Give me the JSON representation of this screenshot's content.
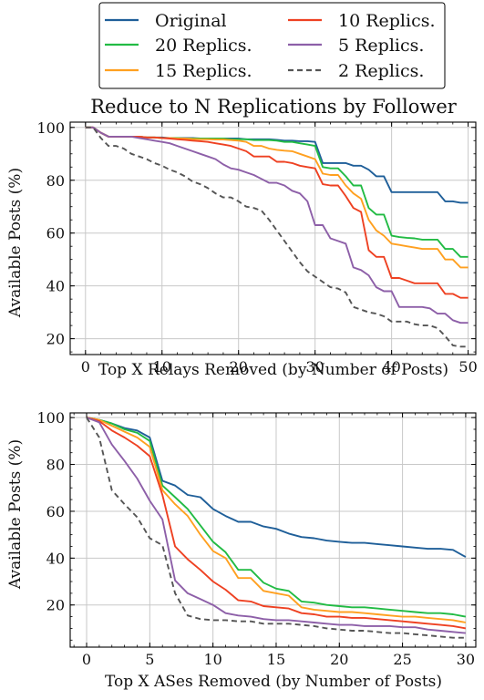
{
  "legend": {
    "items": [
      {
        "label": "Original",
        "color": "#1f5f99",
        "dash": false
      },
      {
        "label": "10 Replics.",
        "color": "#ee4122",
        "dash": false
      },
      {
        "label": "20 Replics.",
        "color": "#22bb44",
        "dash": false
      },
      {
        "label": "5 Replics.",
        "color": "#8d5fa8",
        "dash": false
      },
      {
        "label": "15 Replics.",
        "color": "#ffa020",
        "dash": false
      },
      {
        "label": "2 Replics.",
        "color": "#555555",
        "dash": true
      }
    ]
  },
  "chart_data": [
    {
      "type": "line",
      "title": "Reduce to N Replications by Follower",
      "xlabel": "Top X Relays Removed (by Number of Posts)",
      "ylabel": "Available Posts (%)",
      "xlim": [
        -2,
        51
      ],
      "ylim": [
        14,
        102
      ],
      "xticks": [
        0,
        10,
        20,
        30,
        40,
        50
      ],
      "yticks": [
        20,
        40,
        60,
        80,
        100
      ],
      "grid": true,
      "x": [
        0,
        1,
        2,
        3,
        4,
        5,
        6,
        7,
        8,
        9,
        10,
        11,
        12,
        13,
        14,
        15,
        16,
        17,
        18,
        19,
        20,
        21,
        22,
        23,
        24,
        25,
        26,
        27,
        28,
        29,
        30,
        31,
        32,
        33,
        34,
        35,
        36,
        37,
        38,
        39,
        40,
        41,
        42,
        43,
        44,
        45,
        46,
        47,
        48,
        49,
        50
      ],
      "series": [
        {
          "name": "Original",
          "color": "#1f5f99",
          "dash": false,
          "values": [
            100,
            100,
            98,
            96.5,
            96.5,
            96.5,
            96.5,
            96.5,
            96.2,
            96.2,
            96.2,
            96,
            96,
            96,
            96,
            95.8,
            95.8,
            95.8,
            95.8,
            95.8,
            95.8,
            95.5,
            95.5,
            95.5,
            95.5,
            95.3,
            95,
            95,
            94.8,
            94.8,
            94.5,
            86.5,
            86.5,
            86.5,
            86.5,
            85.5,
            85.5,
            84,
            81.5,
            81.5,
            75.5,
            75.5,
            75.5,
            75.5,
            75.5,
            75.5,
            75.5,
            72,
            72,
            71.5,
            71.5
          ]
        },
        {
          "name": "20 Replics.",
          "color": "#22bb44",
          "dash": false,
          "values": [
            100,
            100,
            98,
            96.5,
            96.5,
            96.5,
            96.5,
            96.5,
            96.2,
            96.2,
            96,
            96,
            96,
            95.8,
            95.8,
            95.8,
            95.8,
            95.8,
            95.8,
            95.5,
            95.5,
            95.5,
            95.2,
            95.2,
            95.2,
            95,
            94.5,
            94.5,
            94,
            93.5,
            93,
            85,
            84.5,
            84.5,
            81.5,
            78,
            78,
            69.5,
            67,
            67,
            59,
            58.5,
            58.2,
            58,
            57.5,
            57.5,
            57.5,
            54,
            54,
            51,
            51
          ]
        },
        {
          "name": "15 Replics.",
          "color": "#ffa020",
          "dash": false,
          "values": [
            100,
            100,
            98,
            96.5,
            96.5,
            96.5,
            96.5,
            96.5,
            96.2,
            96.2,
            96,
            96,
            95.8,
            95.8,
            95.6,
            95.5,
            95.5,
            95.4,
            95.4,
            95.2,
            95,
            94.5,
            93,
            93,
            92,
            91.5,
            91.2,
            91,
            90,
            89,
            88,
            82.5,
            82,
            82,
            78,
            75,
            73,
            65,
            61,
            59,
            56,
            55.5,
            55,
            54.5,
            54,
            54,
            54,
            50,
            50,
            47,
            47
          ]
        },
        {
          "name": "10 Replics.",
          "color": "#ee4122",
          "dash": false,
          "values": [
            100,
            100,
            98,
            96.5,
            96.5,
            96.5,
            96.5,
            96.5,
            96.2,
            96.2,
            96,
            95.8,
            95.5,
            95.3,
            95,
            94.8,
            94.5,
            94,
            93.5,
            93,
            92,
            91,
            89,
            89,
            89,
            87,
            87,
            86.5,
            85.5,
            85,
            84.5,
            78.5,
            78,
            78,
            74,
            69.5,
            68,
            53.5,
            51,
            51,
            43,
            43,
            42,
            41,
            41,
            41,
            41,
            37,
            37,
            35.5,
            35.5
          ]
        },
        {
          "name": "5 Replics.",
          "color": "#8d5fa8",
          "dash": false,
          "values": [
            100,
            100,
            98,
            96.5,
            96.5,
            96.5,
            96.5,
            96,
            95.5,
            95,
            94.5,
            94,
            93,
            92,
            91,
            90,
            89,
            88,
            86,
            84.5,
            84,
            83,
            82,
            80.5,
            79,
            79,
            78,
            76,
            75,
            72,
            63,
            63,
            58,
            57,
            56,
            47,
            46,
            44,
            39.5,
            38,
            38,
            32,
            32,
            32,
            32,
            31.5,
            29.5,
            29.5,
            27,
            26,
            26
          ]
        },
        {
          "name": "2 Replics.",
          "color": "#555555",
          "dash": true,
          "values": [
            100,
            100,
            96,
            93,
            93,
            92,
            90,
            89,
            88,
            86.5,
            85.5,
            84,
            83,
            81.5,
            79.5,
            78.5,
            77,
            75,
            73.5,
            73.5,
            72,
            70,
            69.5,
            68.5,
            65,
            61,
            57,
            53,
            49,
            45.5,
            43.5,
            41.5,
            39.5,
            39,
            37.5,
            32,
            31,
            30,
            29.5,
            28.5,
            26.5,
            26.5,
            26.5,
            25.5,
            25,
            25,
            24,
            21,
            17.5,
            17,
            17
          ]
        }
      ]
    },
    {
      "type": "line",
      "title": "",
      "xlabel": "Top X ASes Removed (by Number of Posts)",
      "ylabel": "Available Posts (%)",
      "xlim": [
        -1.3,
        30.8
      ],
      "ylim": [
        2,
        102
      ],
      "xticks": [
        0,
        5,
        10,
        15,
        20,
        25,
        30
      ],
      "yticks": [
        20,
        40,
        60,
        80,
        100
      ],
      "grid": true,
      "x": [
        0,
        1,
        2,
        3,
        4,
        5,
        6,
        7,
        8,
        9,
        10,
        11,
        12,
        13,
        14,
        15,
        16,
        17,
        18,
        19,
        20,
        21,
        22,
        23,
        24,
        25,
        26,
        27,
        28,
        29,
        30
      ],
      "series": [
        {
          "name": "Original",
          "color": "#1f5f99",
          "dash": false,
          "values": [
            100,
            99,
            97.5,
            95.5,
            94.5,
            91.5,
            73,
            71,
            67,
            66,
            61,
            58,
            55.5,
            55.5,
            53.5,
            52.5,
            50.5,
            49,
            48.5,
            47.5,
            47,
            46.5,
            46.5,
            46,
            45.5,
            45,
            44.5,
            44,
            44,
            43.5,
            40.5
          ]
        },
        {
          "name": "20 Replics.",
          "color": "#22bb44",
          "dash": false,
          "values": [
            100,
            99,
            97.5,
            95,
            93.5,
            90,
            71,
            66,
            61,
            54,
            47,
            42.5,
            35,
            35,
            29.5,
            27,
            26,
            21.5,
            21,
            20,
            19.5,
            19,
            19,
            18.5,
            18,
            17.5,
            17,
            16.5,
            16.5,
            16,
            15
          ]
        },
        {
          "name": "15 Replics.",
          "color": "#ffa020",
          "dash": false,
          "values": [
            100,
            99,
            96.5,
            94,
            91.5,
            87.5,
            69,
            63,
            58,
            50,
            43,
            40,
            31.5,
            31.5,
            26,
            25,
            24,
            19,
            18,
            17.5,
            17,
            17,
            16.5,
            16,
            15.5,
            15,
            15,
            14.5,
            14,
            13.5,
            12.5
          ]
        },
        {
          "name": "10 Replics.",
          "color": "#ee4122",
          "dash": false,
          "values": [
            100,
            98.5,
            94.5,
            91.5,
            88,
            83.5,
            67,
            45,
            39.5,
            35,
            30,
            26.5,
            22,
            21.5,
            19.5,
            19,
            18.5,
            16.5,
            16,
            15,
            15,
            14.5,
            14.5,
            14,
            13.5,
            13,
            12.5,
            12,
            11.5,
            11,
            10
          ]
        },
        {
          "name": "5 Replics.",
          "color": "#8d5fa8",
          "dash": false,
          "values": [
            100,
            98,
            88.5,
            81.5,
            74,
            64.5,
            56.5,
            30.5,
            25,
            22.5,
            20,
            16.5,
            15.5,
            15,
            14,
            13.5,
            13.5,
            13,
            12.5,
            12,
            11.5,
            11.5,
            11,
            11,
            11,
            10.5,
            10.5,
            9.5,
            9,
            8.5,
            8
          ]
        },
        {
          "name": "2 Replics.",
          "color": "#555555",
          "dash": true,
          "values": [
            100,
            91.5,
            69,
            63,
            57.5,
            48.5,
            45.5,
            25,
            15.5,
            14,
            13.5,
            13.5,
            13,
            13,
            12,
            12,
            12,
            11.5,
            11,
            10,
            9.5,
            9,
            9,
            8.5,
            8,
            8,
            7.5,
            7,
            6.5,
            6,
            6
          ]
        }
      ]
    }
  ]
}
